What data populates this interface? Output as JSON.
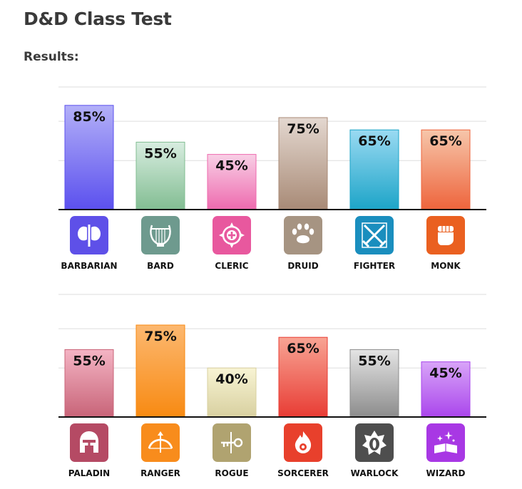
{
  "page": {
    "title": "D&D Class Test",
    "subtitle": "Results:"
  },
  "chart_data": [
    {
      "type": "bar",
      "categories": [
        "BARBARIAN",
        "BARD",
        "CLERIC",
        "DRUID",
        "FIGHTER",
        "MONK"
      ],
      "values": [
        85,
        55,
        45,
        75,
        65,
        65
      ],
      "value_labels": [
        "85%",
        "55%",
        "45%",
        "75%",
        "65%",
        "65%"
      ],
      "colors": [
        [
          "#b3b0f8",
          "#5b50ee"
        ],
        [
          "#d8ede0",
          "#82bd92"
        ],
        [
          "#f8d0e6",
          "#ee6aae"
        ],
        [
          "#e4d8d0",
          "#a88a76"
        ],
        [
          "#9adaf2",
          "#1ca4c8"
        ],
        [
          "#f6c6aa",
          "#ee643c"
        ]
      ],
      "icon_colors": [
        "#5e50e8",
        "#6e9a8e",
        "#e8589e",
        "#a69482",
        "#1a8ebe",
        "#ea6020"
      ],
      "icon_names": [
        "barbarian-axe-icon",
        "bard-lyre-icon",
        "cleric-holy-symbol-icon",
        "druid-paw-icon",
        "fighter-crossed-swords-icon",
        "monk-fist-icon"
      ],
      "ylim": [
        0,
        100
      ],
      "grid": true
    },
    {
      "type": "bar",
      "categories": [
        "PALADIN",
        "RANGER",
        "ROGUE",
        "SORCERER",
        "WARLOCK",
        "WIZARD"
      ],
      "values": [
        55,
        75,
        40,
        65,
        55,
        45
      ],
      "value_labels": [
        "55%",
        "75%",
        "40%",
        "65%",
        "55%",
        "45%"
      ],
      "colors": [
        [
          "#f4b4c4",
          "#c86478"
        ],
        [
          "#fcb870",
          "#f88a12"
        ],
        [
          "#f8f4d4",
          "#d8d0a0"
        ],
        [
          "#f8a494",
          "#e83c34"
        ],
        [
          "#e4e4e4",
          "#8c8c8c"
        ],
        [
          "#d8a4f8",
          "#aa46ec"
        ]
      ],
      "icon_colors": [
        "#b54a64",
        "#f88c1c",
        "#b0a370",
        "#e8402c",
        "#4e4e4e",
        "#a838e4"
      ],
      "icon_names": [
        "paladin-helmet-icon",
        "ranger-bow-icon",
        "rogue-key-icon",
        "sorcerer-flame-icon",
        "warlock-eye-icon",
        "wizard-spellbook-icon"
      ],
      "ylim": [
        0,
        100
      ],
      "grid": true
    }
  ]
}
